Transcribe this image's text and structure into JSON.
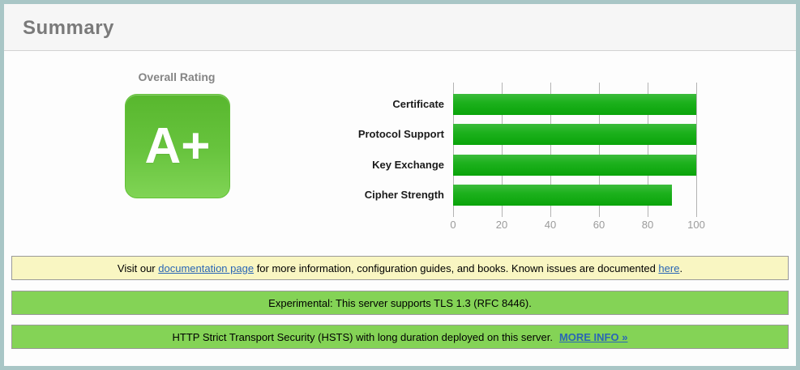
{
  "header": {
    "title": "Summary"
  },
  "overall_rating": {
    "label": "Overall Rating",
    "grade": "A+"
  },
  "chart_data": {
    "type": "bar",
    "orientation": "horizontal",
    "title": "",
    "categories": [
      "Certificate",
      "Protocol Support",
      "Key Exchange",
      "Cipher Strength"
    ],
    "values": [
      100,
      100,
      100,
      90
    ],
    "xlim": [
      0,
      100
    ],
    "ticks": [
      0,
      20,
      40,
      60,
      80,
      100
    ],
    "grid": true,
    "legend": false,
    "bar_color": "#1db11d"
  },
  "notices": {
    "documentation": {
      "text_before": "Visit our ",
      "doc_link": "documentation page",
      "text_middle": " for more information, configuration guides, and books. Known issues are documented ",
      "issues_link": "here",
      "text_after": "."
    },
    "tls13": {
      "text": "Experimental: This server supports TLS 1.3 (RFC 8446)."
    },
    "hsts": {
      "text": "HTTP Strict Transport Security (HSTS) with long duration deployed on this server.",
      "link": "MORE INFO »"
    }
  },
  "colors": {
    "frame_border": "#a9c6c6",
    "header_bg": "#f6f6f6",
    "grade_green_top": "#58b72e",
    "grade_green_bottom": "#80d455",
    "bar_green": "#1db11d",
    "notice_yellow_bg": "#f9f6c2",
    "notice_green_bg": "#84d356",
    "link_blue": "#2a66b5"
  }
}
